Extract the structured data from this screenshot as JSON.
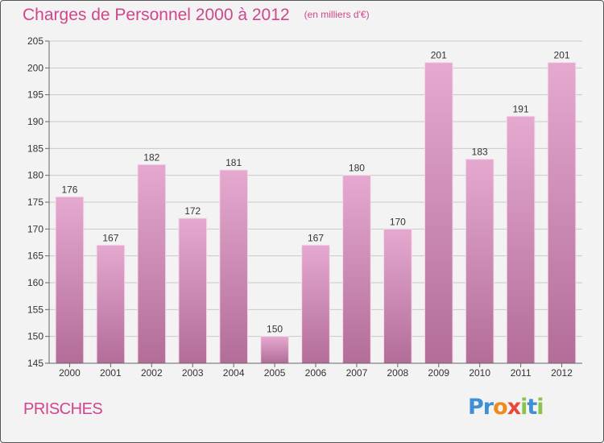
{
  "header": {
    "title": "Charges de Personnel 2000 à 2012",
    "subtitle": "(en milliers d'€)"
  },
  "footer": {
    "location": "PRISCHES",
    "brand_letters": [
      {
        "ch": "P",
        "color": "#3e8fd6"
      },
      {
        "ch": "r",
        "color": "#3e8fd6"
      },
      {
        "ch": "o",
        "color": "#f08a1c"
      },
      {
        "ch": "x",
        "color": "#e8483a"
      },
      {
        "ch": "i",
        "color": "#8bc34a"
      },
      {
        "ch": "t",
        "color": "#3e8fd6"
      },
      {
        "ch": "i",
        "color": "#8bc34a"
      }
    ]
  },
  "colors": {
    "title": "#d0458c",
    "bar_top": "#e5a9d0",
    "bar_bottom": "#b26d98",
    "grid": "#c8c8c8",
    "axis_text": "#333333"
  },
  "chart_data": {
    "type": "bar",
    "title": "Charges de Personnel 2000 à 2012",
    "subtitle": "(en milliers d'€)",
    "categories": [
      "2000",
      "2001",
      "2002",
      "2003",
      "2004",
      "2005",
      "2006",
      "2007",
      "2008",
      "2009",
      "2010",
      "2011",
      "2012"
    ],
    "values": [
      176,
      167,
      182,
      172,
      181,
      150,
      167,
      180,
      170,
      201,
      183,
      191,
      201
    ],
    "ylim": [
      145,
      205
    ],
    "yticks": [
      145,
      150,
      155,
      160,
      165,
      170,
      175,
      180,
      185,
      190,
      195,
      200,
      205
    ],
    "grid": true,
    "data_labels": true
  }
}
